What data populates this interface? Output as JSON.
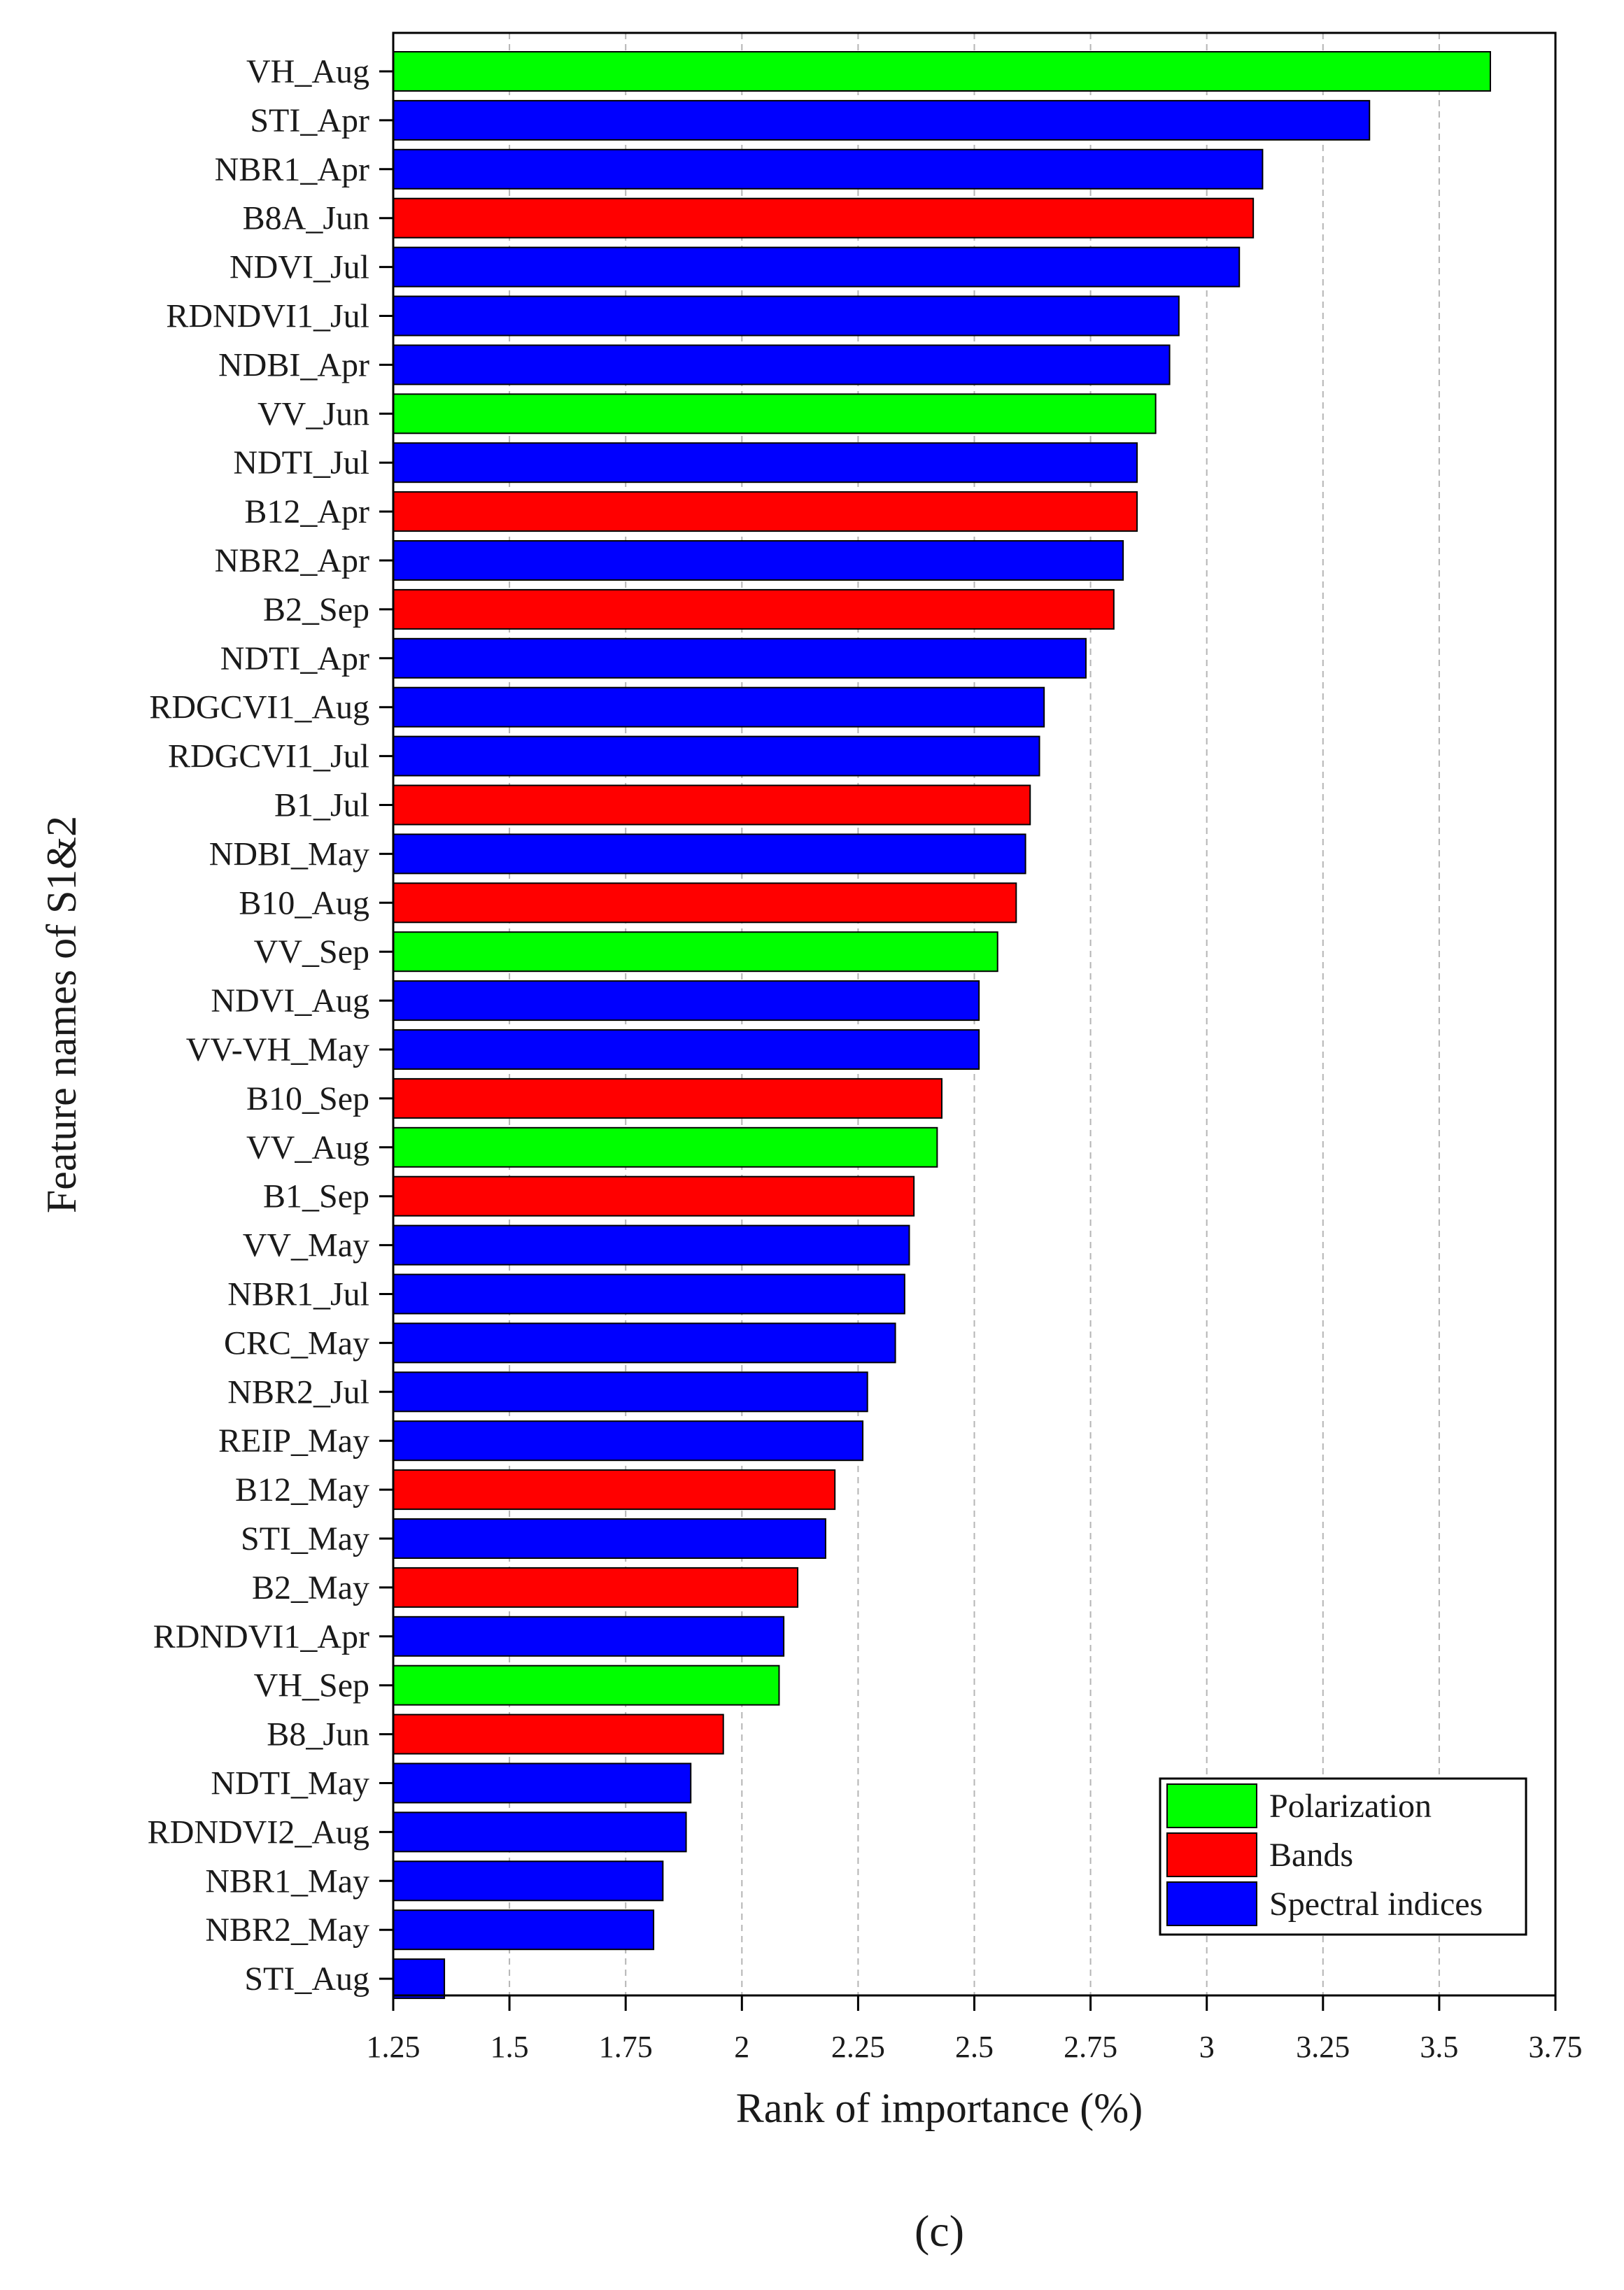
{
  "chart_data": {
    "type": "bar",
    "orientation": "horizontal",
    "ylabel": "Feature names of S1&2",
    "xlabel": "Rank of importance (%)",
    "xlim": [
      1.25,
      3.75
    ],
    "xticks": [
      "1.25",
      "1.5",
      "1.75",
      "2",
      "2.25",
      "2.5",
      "2.75",
      "3",
      "3.25",
      "3.5",
      "3.75"
    ],
    "xtick_values": [
      1.25,
      1.5,
      1.75,
      2,
      2.25,
      2.5,
      2.75,
      3,
      3.25,
      3.5,
      3.75
    ],
    "grid": "vertical dashed",
    "legend_position": "bottom-right",
    "colors": {
      "Polarization": "#00ff00",
      "Bands": "#ff0000",
      "Spectral indices": "#0000ff"
    },
    "legend": [
      "Polarization",
      "Bands",
      "Spectral indices"
    ],
    "bars": [
      {
        "label": "VH_Aug",
        "value": 3.61,
        "group": "Polarization"
      },
      {
        "label": "STI_Apr",
        "value": 3.35,
        "group": "Spectral indices"
      },
      {
        "label": "NBR1_Apr",
        "value": 3.12,
        "group": "Spectral indices"
      },
      {
        "label": "B8A_Jun",
        "value": 3.1,
        "group": "Bands"
      },
      {
        "label": "NDVI_Jul",
        "value": 3.07,
        "group": "Spectral indices"
      },
      {
        "label": "RDNDVI1_Jul",
        "value": 2.94,
        "group": "Spectral indices"
      },
      {
        "label": "NDBI_Apr",
        "value": 2.92,
        "group": "Spectral indices"
      },
      {
        "label": "VV_Jun",
        "value": 2.89,
        "group": "Polarization"
      },
      {
        "label": "NDTI_Jul",
        "value": 2.85,
        "group": "Spectral indices"
      },
      {
        "label": "B12_Apr",
        "value": 2.85,
        "group": "Bands"
      },
      {
        "label": "NBR2_Apr",
        "value": 2.82,
        "group": "Spectral indices"
      },
      {
        "label": "B2_Sep",
        "value": 2.8,
        "group": "Bands"
      },
      {
        "label": "NDTI_Apr",
        "value": 2.74,
        "group": "Spectral indices"
      },
      {
        "label": "RDGCVI1_Aug",
        "value": 2.65,
        "group": "Spectral indices"
      },
      {
        "label": "RDGCVI1_Jul",
        "value": 2.64,
        "group": "Spectral indices"
      },
      {
        "label": "B1_Jul",
        "value": 2.62,
        "group": "Bands"
      },
      {
        "label": "NDBI_May",
        "value": 2.61,
        "group": "Spectral indices"
      },
      {
        "label": "B10_Aug",
        "value": 2.59,
        "group": "Bands"
      },
      {
        "label": "VV_Sep",
        "value": 2.55,
        "group": "Polarization"
      },
      {
        "label": "NDVI_Aug",
        "value": 2.51,
        "group": "Spectral indices"
      },
      {
        "label": "VV-VH_May",
        "value": 2.51,
        "group": "Spectral indices"
      },
      {
        "label": "B10_Sep",
        "value": 2.43,
        "group": "Bands"
      },
      {
        "label": "VV_Aug",
        "value": 2.42,
        "group": "Polarization"
      },
      {
        "label": "B1_Sep",
        "value": 2.37,
        "group": "Bands"
      },
      {
        "label": "VV_May",
        "value": 2.36,
        "group": "Spectral indices"
      },
      {
        "label": "NBR1_Jul",
        "value": 2.35,
        "group": "Spectral indices"
      },
      {
        "label": "CRC_May",
        "value": 2.33,
        "group": "Spectral indices"
      },
      {
        "label": "NBR2_Jul",
        "value": 2.27,
        "group": "Spectral indices"
      },
      {
        "label": "REIP_May",
        "value": 2.26,
        "group": "Spectral indices"
      },
      {
        "label": "B12_May",
        "value": 2.2,
        "group": "Bands"
      },
      {
        "label": "STI_May",
        "value": 2.18,
        "group": "Spectral indices"
      },
      {
        "label": "B2_May",
        "value": 2.12,
        "group": "Bands"
      },
      {
        "label": "RDNDVI1_Apr",
        "value": 2.09,
        "group": "Spectral indices"
      },
      {
        "label": "VH_Sep",
        "value": 2.08,
        "group": "Polarization"
      },
      {
        "label": "B8_Jun",
        "value": 1.96,
        "group": "Bands"
      },
      {
        "label": "NDTI_May",
        "value": 1.89,
        "group": "Spectral indices"
      },
      {
        "label": "RDNDVI2_Aug",
        "value": 1.88,
        "group": "Spectral indices"
      },
      {
        "label": "NBR1_May",
        "value": 1.83,
        "group": "Spectral indices"
      },
      {
        "label": "NBR2_May",
        "value": 1.81,
        "group": "Spectral indices"
      },
      {
        "label": "STI_Aug",
        "value": 1.36,
        "group": "Spectral indices"
      }
    ]
  },
  "caption": "(c)"
}
